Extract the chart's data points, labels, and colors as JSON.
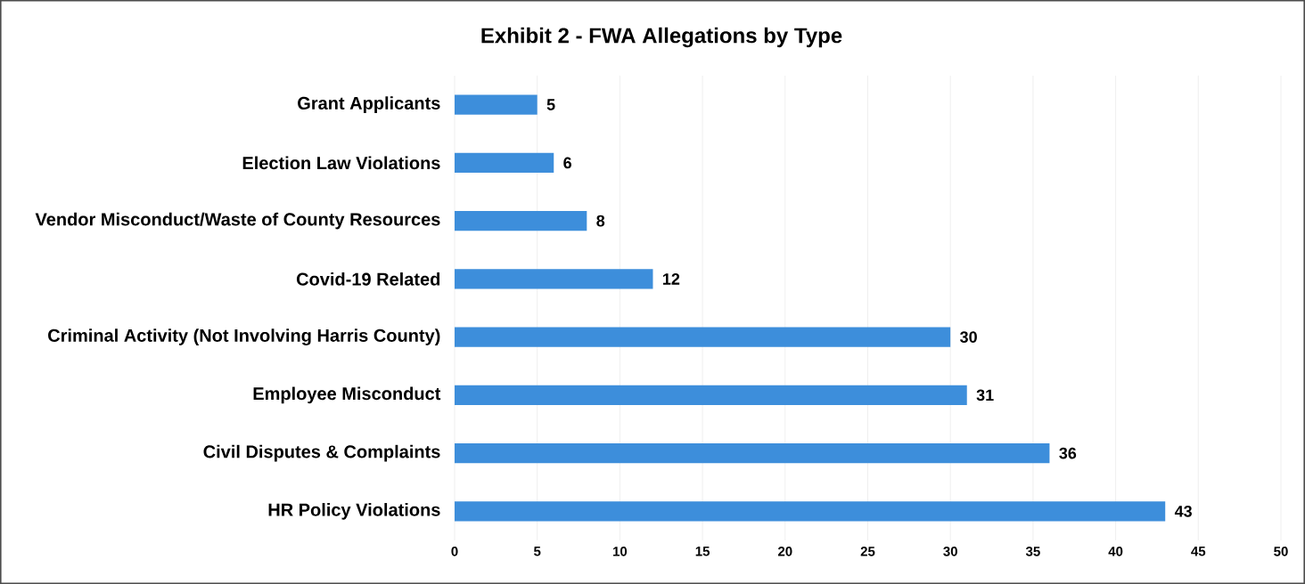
{
  "chart_data": {
    "type": "bar",
    "orientation": "horizontal",
    "title": "Exhibit 2 - FWA Allegations by Type",
    "categories": [
      "Grant Applicants",
      "Election Law Violations",
      "Vendor Misconduct/Waste of County Resources",
      "Covid-19 Related",
      "Criminal Activity (Not Involving Harris County)",
      "Employee Misconduct",
      "Civil Disputes & Complaints",
      "HR Policy Violations"
    ],
    "values": [
      5,
      6,
      8,
      12,
      30,
      31,
      36,
      43
    ],
    "color": "#3d8edb",
    "xlim": [
      0,
      50
    ],
    "xticks": [
      0,
      5,
      10,
      15,
      20,
      25,
      30,
      35,
      40,
      45,
      50
    ],
    "grid": "x",
    "data_labels": true
  }
}
